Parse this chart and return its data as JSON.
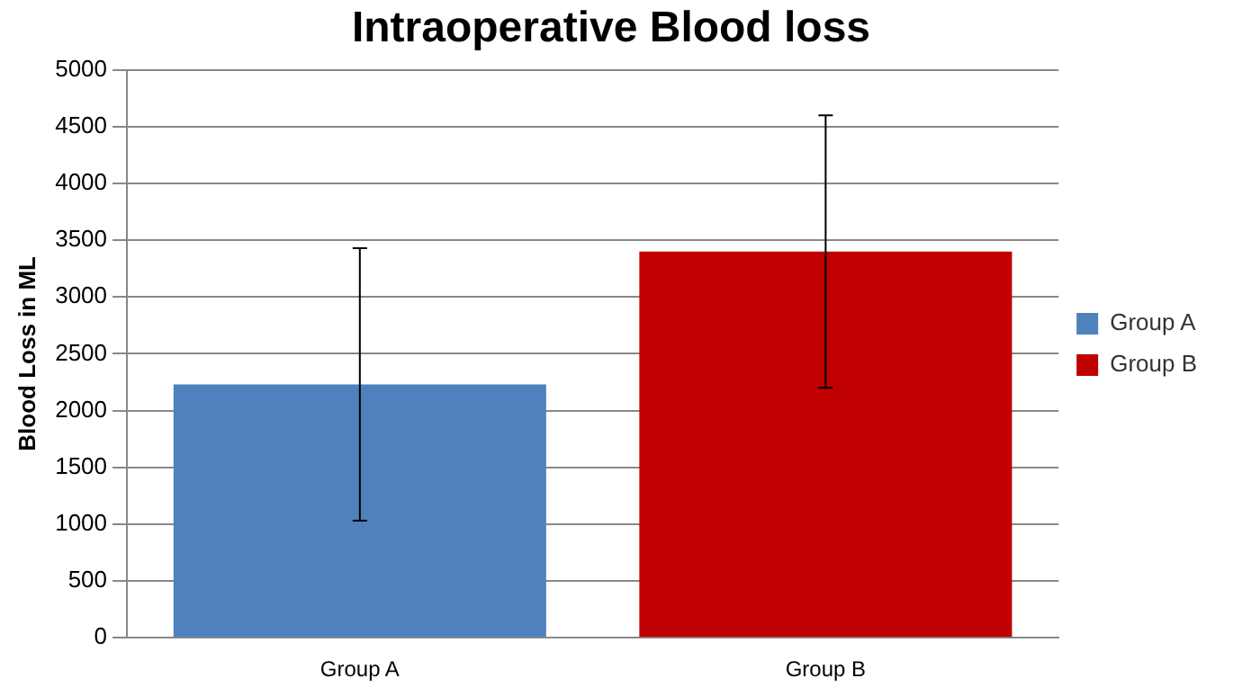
{
  "chart_data": {
    "type": "bar",
    "title": "Intraoperative Blood loss",
    "ylabel": "Blood Loss in ML",
    "categories": [
      "Group A",
      "Group B"
    ],
    "series": [
      {
        "name": "Group A",
        "color": "#4f81bd",
        "values": [
          2230,
          null
        ],
        "errors": [
          1200,
          null
        ]
      },
      {
        "name": "Group B",
        "color": "#c00000",
        "values": [
          null,
          3400
        ],
        "errors": [
          null,
          1200
        ]
      }
    ],
    "ylim": [
      0,
      5000
    ],
    "yticks": [
      0,
      500,
      1000,
      1500,
      2000,
      2500,
      3000,
      3500,
      4000,
      4500,
      5000
    ],
    "grid": "y",
    "legend": "right"
  }
}
